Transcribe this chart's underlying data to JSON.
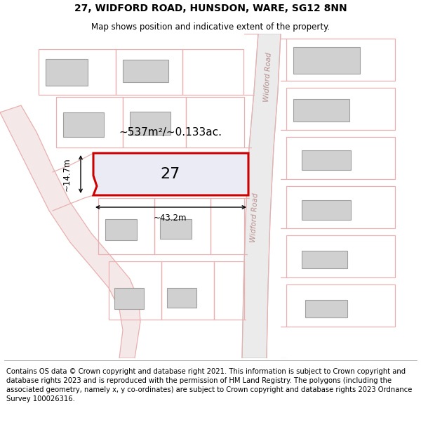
{
  "title": "27, WIDFORD ROAD, HUNSDON, WARE, SG12 8NN",
  "subtitle": "Map shows position and indicative extent of the property.",
  "title_fontsize": 10,
  "subtitle_fontsize": 8.5,
  "footer_text": "Contains OS data © Crown copyright and database right 2021. This information is subject to Crown copyright and database rights 2023 and is reproduced with the permission of HM Land Registry. The polygons (including the associated geometry, namely x, y co-ordinates) are subject to Crown copyright and database rights 2023 Ordnance Survey 100026316.",
  "footer_fontsize": 7.2,
  "background_color": "#ffffff",
  "map_bg": "#ffffff",
  "road_fill": "#f5e8e8",
  "road_edge": "#e8b0b0",
  "building_fill": "#d0d0d0",
  "building_edge": "#a0a0a0",
  "highlight_fill": "#ebebf5",
  "highlight_edge": "#cc0000",
  "highlight_lw": 2.2,
  "road_label": "Widford Road",
  "plot_label": "27",
  "area_label": "~537m²/~0.133ac.",
  "width_label": "~43.2m",
  "height_label": "~14.7m"
}
